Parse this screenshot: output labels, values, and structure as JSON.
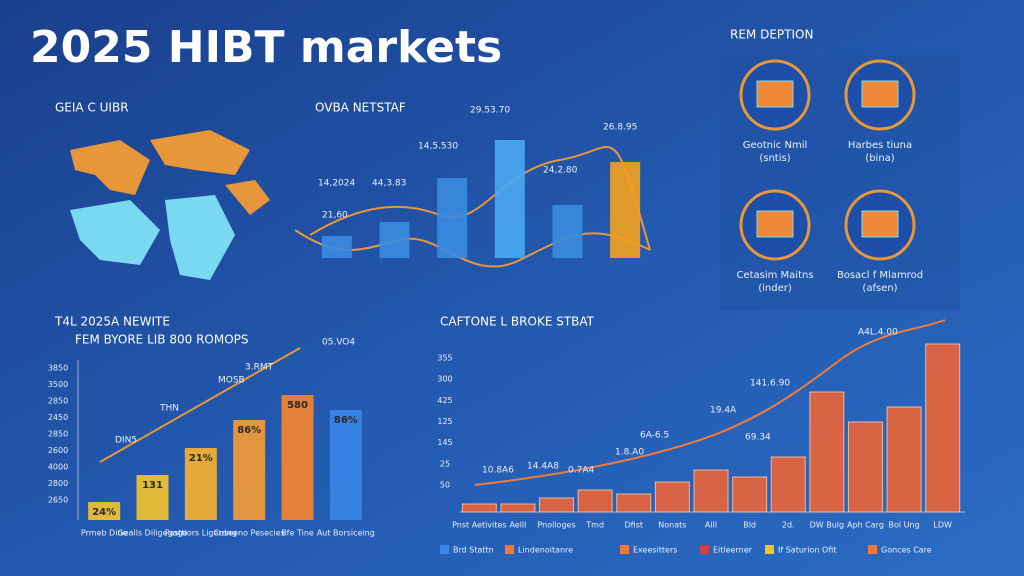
{
  "title": "2025 HIBT markets",
  "map": {
    "label": "GEIA C UIBR"
  },
  "icons": {
    "title": "REM DEPTION",
    "items": [
      {
        "label": "Geotnic Nmil",
        "note": "(sntis)"
      },
      {
        "label": "Harbes tiuna",
        "note": "(bina)"
      },
      {
        "label": "Cetasim Maitns",
        "note": "(inder)"
      },
      {
        "label": "Bosacl f Mlamrod",
        "note": "(afsen)"
      }
    ]
  },
  "chart_data": [
    {
      "type": "bar",
      "title": "OVBA NETSTAF",
      "values": [
        22,
        36,
        80,
        118,
        53,
        96
      ],
      "colors": [
        "#3b8be0",
        "#3b8be0",
        "#3b8be0",
        "#4aa8f0",
        "#3b8be0",
        "#f0a020"
      ],
      "annotations": [
        "14,2024",
        "21,60",
        "44,3.83",
        "14,5.530",
        "29.53.70",
        "24,2.80",
        "26.8.95"
      ]
    },
    {
      "type": "bar",
      "title": "T4L 2025A NEWITE",
      "subtitle": "FEM BYORE LIB 800 ROMOPS",
      "y_axis_labels": [
        "3850",
        "3500",
        "2850",
        "2450",
        "2850",
        "2600",
        "4000",
        "2800",
        "2650"
      ],
      "categories": [
        "Prmeb Dine",
        "Gealls Diligegage",
        "Pasttiors Ligerdng",
        "Coseeno Pesecies",
        "Bfe Tine",
        "Aut Borsiceing"
      ],
      "values": [
        18,
        45,
        72,
        100,
        125,
        110
      ],
      "colors": [
        "#f2c230",
        "#f2c230",
        "#f5b030",
        "#f59a35",
        "#f5842e",
        "#3a86e8"
      ],
      "bar_labels": [
        "24%",
        "131",
        "21%",
        "86%",
        "580",
        "86%"
      ],
      "annotations": [
        "DIN5",
        "THN",
        "MOSB",
        "3.RMT",
        "05.VO4"
      ]
    },
    {
      "type": "bar",
      "title": "CAFTONE L BROKE STBAT",
      "y_axis_labels": [
        "355",
        "300",
        "425",
        "125",
        "145",
        "25",
        "50"
      ],
      "categories": [
        "Pnst Aetivites",
        "Aelll",
        "Pnolloges",
        "Tmd",
        "Dfist",
        "Nonats",
        "Alll",
        "Bld",
        "2d.",
        "DW Bulg",
        "Aph Carg",
        "Bol Ung",
        "LDW"
      ],
      "values": [
        8,
        8,
        14,
        22,
        18,
        30,
        42,
        35,
        55,
        120,
        90,
        105,
        168
      ],
      "color": "#e8643a",
      "annotations": [
        "10.8A6",
        "14.4A8",
        "0.7A4",
        "1.8.A0",
        "6A-6.5",
        "19.4A",
        "69.34",
        "141.6.90",
        "A4L.4.00"
      ],
      "legend": [
        {
          "name": "Brd Stattn",
          "color": "#3a86e8"
        },
        {
          "name": "Lindenoitanre",
          "color": "#f07a3a"
        },
        {
          "name": "Exeesitters",
          "color": "#f07a3a"
        },
        {
          "name": "Eitleerner",
          "color": "#d04040"
        },
        {
          "name": "If Saturion Ofit",
          "color": "#f2c230"
        },
        {
          "name": "Gonces Care",
          "color": "#f07a3a"
        }
      ]
    }
  ]
}
